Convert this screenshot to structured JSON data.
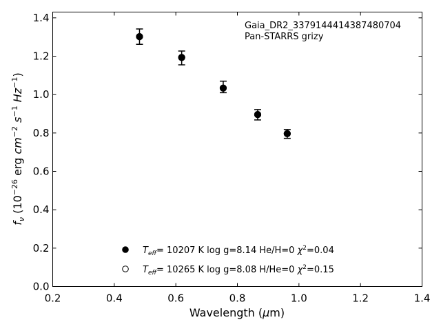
{
  "chart_data": {
    "type": "scatter",
    "title": "",
    "annotation": [
      "Gaia_DR2_3379144414387480704",
      "Pan-STARRS grizy"
    ],
    "xlabel": "Wavelength (μm)",
    "ylabel": "f_ν (10^-26 erg cm^-2 s^-1 Hz^-1)",
    "xlim": [
      0.2,
      1.4
    ],
    "ylim": [
      0.0,
      1.43
    ],
    "xticks": [
      0.2,
      0.4,
      0.6,
      0.8,
      1.0,
      1.2,
      1.4
    ],
    "xtick_labels": [
      "0.2",
      "0.4",
      "0.6",
      "0.8",
      "1.0",
      "1.2",
      "1.4"
    ],
    "yticks": [
      0.0,
      0.2,
      0.4,
      0.6,
      0.8,
      1.0,
      1.2,
      1.4
    ],
    "ytick_labels": [
      "0.0",
      "0.2",
      "0.4",
      "0.6",
      "0.8",
      "1.0",
      "1.2",
      "1.4"
    ],
    "grid": false,
    "legend_position": "lower-center",
    "series": [
      {
        "marker": "errorbar",
        "points": [
          {
            "x": 0.482,
            "y": 1.302,
            "lo": 1.262,
            "hi": 1.342
          },
          {
            "x": 0.619,
            "y": 1.191,
            "lo": 1.155,
            "hi": 1.227
          },
          {
            "x": 0.754,
            "y": 1.04,
            "lo": 1.01,
            "hi": 1.07
          },
          {
            "x": 0.866,
            "y": 0.895,
            "lo": 0.868,
            "hi": 0.922
          },
          {
            "x": 0.962,
            "y": 0.795,
            "lo": 0.772,
            "hi": 0.818
          }
        ]
      },
      {
        "name": "T_eff= 10207 K  log g=8.14  He/H=0  χ²=0.04",
        "marker": "filled-circle",
        "points": [
          {
            "x": 0.482,
            "y": 1.302
          },
          {
            "x": 0.619,
            "y": 1.193
          },
          {
            "x": 0.754,
            "y": 1.034
          },
          {
            "x": 0.866,
            "y": 0.896
          },
          {
            "x": 0.962,
            "y": 0.797
          }
        ]
      },
      {
        "name": "T_eff= 10265 K  log g=8.08  H/He=0  χ²=0.15",
        "marker": "open-circle",
        "points": [
          {
            "x": 0.482,
            "y": 1.302
          },
          {
            "x": 0.619,
            "y": 1.194
          },
          {
            "x": 0.754,
            "y": 1.034
          },
          {
            "x": 0.866,
            "y": 0.896
          },
          {
            "x": 0.962,
            "y": 0.796
          }
        ]
      }
    ],
    "legend": [
      {
        "marker": "filled-circle",
        "teff": "= 10207 K",
        "rest": "  log g=8.14  He/H=0  ",
        "chi2": "=0.04"
      },
      {
        "marker": "open-circle",
        "teff": "= 10265 K",
        "rest": "  log g=8.08  H/He=0  ",
        "chi2": "=0.15"
      }
    ]
  }
}
